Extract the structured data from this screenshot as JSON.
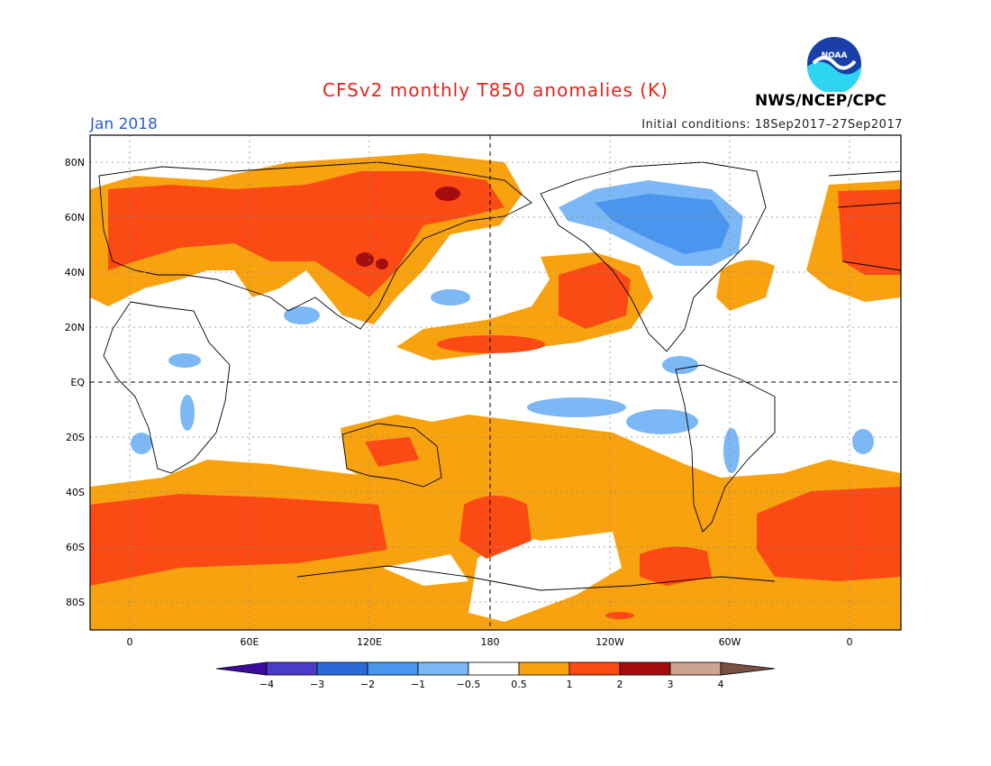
{
  "header": {
    "title": "CFSv2 monthly T850 anomalies (K)",
    "month": "Jan 2018",
    "initial_conditions": "Initial conditions: 18Sep2017–27Sep2017",
    "agency": "NWS/NCEP/CPC",
    "logo_text": "NOAA"
  },
  "map": {
    "lat_labels": [
      "80N",
      "60N",
      "40N",
      "20N",
      "EQ",
      "20S",
      "40S",
      "60S",
      "80S"
    ],
    "lon_labels": [
      "0",
      "60E",
      "120E",
      "180",
      "120W",
      "60W",
      "0"
    ]
  },
  "colorbar": {
    "labels": [
      "−4",
      "−3",
      "−2",
      "−1",
      "−0.5",
      "0.5",
      "1",
      "2",
      "3",
      "4"
    ],
    "colors": {
      "below_-4": "#3a0ca0",
      "-4_-3": "#4b3cc8",
      "-3_-2": "#2b6ad6",
      "-2_-1": "#4a95ee",
      "-1_-0.5": "#7cb8f5",
      "-0.5_0.5": "#ffffff",
      "0.5_1": "#f9a20f",
      "1_2": "#fb4a14",
      "2_3": "#a30d0d",
      "3_4": "#cda393",
      "above_4": "#7b5040"
    }
  }
}
